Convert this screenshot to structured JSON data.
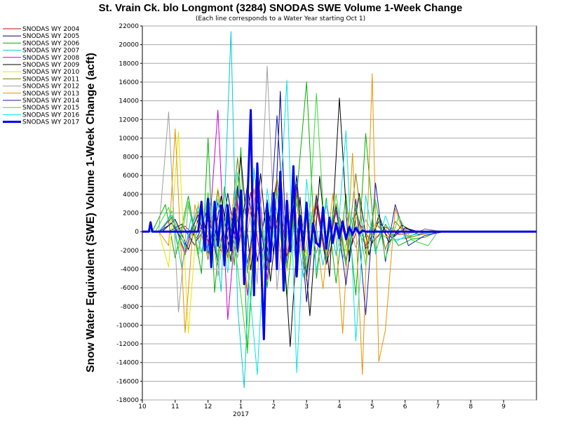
{
  "chart_data": {
    "type": "line",
    "title": "St. Vrain Ck. blo Longmont (3284) SNODAS SWE Volume 1-Week Change",
    "subtitle": "(Each line corresponds to a Water Year starting Oct 1)",
    "xlabel": "",
    "ylabel": "Snow Water Equivalent (SWE) Volume 1-Week Change (acft)",
    "x_unit": "month",
    "xlim": [
      10,
      22
    ],
    "ylim": [
      -18000,
      22000
    ],
    "y_ticks": [
      -18000,
      -16000,
      -14000,
      -12000,
      -10000,
      -8000,
      -6000,
      -4000,
      -2000,
      0,
      2000,
      4000,
      6000,
      8000,
      10000,
      12000,
      14000,
      16000,
      18000,
      20000,
      22000
    ],
    "x_ticks": [
      {
        "x": 10,
        "label": "10"
      },
      {
        "x": 11,
        "label": "11"
      },
      {
        "x": 12,
        "label": "12"
      },
      {
        "x": 13,
        "label": "1"
      },
      {
        "x": 14,
        "label": "2"
      },
      {
        "x": 15,
        "label": "3"
      },
      {
        "x": 16,
        "label": "4"
      },
      {
        "x": 17,
        "label": "5"
      },
      {
        "x": 18,
        "label": "6"
      },
      {
        "x": 19,
        "label": "7"
      },
      {
        "x": 20,
        "label": "8"
      },
      {
        "x": 21,
        "label": "9"
      }
    ],
    "year_label": {
      "x": 13,
      "text": "2017"
    },
    "grid": true,
    "legend_position": "left",
    "series": [
      {
        "name": "SNODAS WY 2004",
        "color": "#cc0000",
        "width": 1,
        "x": [
          10.0,
          10.9,
          11.3,
          11.7,
          12.0,
          12.4,
          12.8,
          13.1,
          13.3,
          13.6,
          13.9,
          14.1,
          14.4,
          14.7,
          15.0,
          15.3,
          15.6,
          16.0,
          16.3,
          16.6,
          17.0,
          17.4,
          17.8,
          18.5,
          19.0,
          21.0,
          22.0
        ],
        "y": [
          0,
          0,
          600,
          -800,
          1200,
          -2100,
          2500,
          -1500,
          4200,
          -3000,
          1800,
          5600,
          -2600,
          3100,
          -4200,
          2800,
          -3500,
          1600,
          -2200,
          900,
          -1200,
          500,
          -300,
          0,
          0,
          0,
          0
        ]
      },
      {
        "name": "SNODAS WY 2005",
        "color": "#000080",
        "width": 1,
        "x": [
          10.0,
          10.8,
          11.2,
          11.6,
          12.0,
          12.3,
          12.6,
          12.9,
          13.2,
          13.5,
          13.8,
          14.0,
          14.2,
          14.4,
          14.7,
          15.0,
          15.3,
          15.6,
          15.9,
          16.2,
          16.5,
          16.8,
          17.2,
          17.6,
          18.0,
          18.6,
          19.2,
          21.0,
          22.0
        ],
        "y": [
          0,
          0,
          800,
          -1500,
          2600,
          -3500,
          4100,
          -2200,
          5000,
          -3200,
          3400,
          -2400,
          15000,
          -4200,
          6000,
          -7500,
          3900,
          -2800,
          2200,
          -3300,
          2500,
          -1800,
          1100,
          -700,
          400,
          -200,
          0,
          0,
          0
        ]
      },
      {
        "name": "SNODAS WY 2006",
        "color": "#00b000",
        "width": 1,
        "x": [
          10.0,
          10.3,
          10.7,
          11.0,
          11.4,
          11.8,
          12.0,
          12.2,
          12.5,
          12.8,
          13.0,
          13.2,
          13.5,
          13.8,
          14.1,
          14.4,
          14.7,
          15.0,
          15.3,
          15.6,
          15.9,
          16.2,
          16.5,
          16.8,
          17.1,
          17.4,
          17.8,
          18.2,
          18.6,
          19.0,
          21.0,
          22.0
        ],
        "y": [
          0,
          0,
          2900,
          -2800,
          3800,
          -4500,
          10000,
          -6500,
          4800,
          -3600,
          9000,
          -13000,
          5900,
          -6000,
          4500,
          -7000,
          3900,
          16000,
          -5000,
          3600,
          -5500,
          4000,
          -6800,
          10500,
          -2100,
          800,
          -1500,
          -800,
          -600,
          0,
          0,
          0
        ]
      },
      {
        "name": "SNODAS WY 2007",
        "color": "#00cccc",
        "width": 1,
        "x": [
          10.0,
          10.6,
          10.9,
          11.2,
          11.5,
          11.8,
          12.1,
          12.4,
          12.7,
          12.9,
          13.1,
          13.4,
          13.7,
          14.0,
          14.3,
          14.6,
          14.9,
          15.2,
          15.5,
          15.8,
          16.1,
          16.4,
          16.7,
          17.0,
          17.3,
          17.6,
          18.0,
          18.5,
          19.0,
          21.0,
          22.0
        ],
        "y": [
          0,
          0,
          2200,
          -3900,
          1800,
          -2200,
          3500,
          -6400,
          21400,
          -8000,
          -16700,
          6800,
          -3900,
          4200,
          -2600,
          3300,
          -4900,
          2400,
          -3600,
          1900,
          -2900,
          1500,
          -900,
          600,
          -400,
          -900,
          -700,
          -300,
          0,
          0,
          0
        ]
      },
      {
        "name": "SNODAS WY 2008",
        "color": "#cc00cc",
        "width": 1,
        "x": [
          10.0,
          10.5,
          10.9,
          11.3,
          11.7,
          12.0,
          12.3,
          12.6,
          12.9,
          13.2,
          13.5,
          13.8,
          14.1,
          14.4,
          14.7,
          15.0,
          15.3,
          15.6,
          15.9,
          16.2,
          16.5,
          16.8,
          17.1,
          17.5,
          18.0,
          18.6,
          19.2,
          21.0,
          22.0
        ],
        "y": [
          0,
          0,
          1500,
          -2200,
          2800,
          -1800,
          13000,
          -9400,
          3300,
          -6800,
          7300,
          -5100,
          4400,
          -3600,
          4800,
          -5200,
          3200,
          -2900,
          2100,
          -3000,
          2400,
          -1500,
          900,
          -600,
          300,
          -200,
          0,
          0,
          0
        ]
      },
      {
        "name": "SNODAS WY 2009",
        "color": "#000000",
        "width": 1,
        "x": [
          10.0,
          10.6,
          11.0,
          11.4,
          11.8,
          12.1,
          12.4,
          12.7,
          13.0,
          13.3,
          13.6,
          13.9,
          14.2,
          14.5,
          14.8,
          15.1,
          15.4,
          15.7,
          16.0,
          16.3,
          16.6,
          16.9,
          17.2,
          17.5,
          17.9,
          18.4,
          19.0,
          21.0,
          22.0
        ],
        "y": [
          0,
          0,
          1300,
          -1900,
          2400,
          -2800,
          3800,
          -3200,
          8000,
          -4100,
          6200,
          -5300,
          4300,
          -12300,
          3700,
          -9000,
          5900,
          -4800,
          14300,
          -3200,
          4100,
          -2500,
          1800,
          -1200,
          700,
          -300,
          0,
          0,
          0
        ]
      },
      {
        "name": "SNODAS WY 2010",
        "color": "#e6e600",
        "width": 1,
        "x": [
          10.0,
          10.5,
          10.8,
          11.1,
          11.4,
          11.7,
          12.0,
          12.3,
          12.6,
          12.9,
          13.2,
          13.5,
          13.8,
          14.1,
          14.4,
          14.7,
          15.0,
          15.3,
          15.6,
          15.9,
          16.2,
          16.5,
          16.8,
          17.1,
          17.4,
          17.8,
          18.3,
          19.0,
          21.0,
          22.0
        ],
        "y": [
          0,
          0,
          -3800,
          10700,
          -10900,
          3200,
          -2500,
          4700,
          -3300,
          5800,
          -6000,
          3900,
          -3000,
          4600,
          -4200,
          3400,
          -2600,
          4100,
          -3100,
          2500,
          -2100,
          1700,
          -1200,
          900,
          -600,
          300,
          -100,
          0,
          0,
          0
        ]
      },
      {
        "name": "SNODAS WY 2011",
        "color": "#7f7f00",
        "width": 1,
        "x": [
          10.0,
          10.5,
          10.9,
          11.3,
          11.7,
          12.0,
          12.3,
          12.6,
          12.9,
          13.2,
          13.5,
          13.8,
          14.1,
          14.4,
          14.7,
          15.0,
          15.3,
          15.6,
          15.9,
          16.2,
          16.5,
          16.8,
          17.1,
          17.4,
          17.7,
          18.1,
          18.6,
          19.1,
          21.0,
          22.0
        ],
        "y": [
          0,
          0,
          1600,
          -2500,
          2200,
          -3000,
          4400,
          -2800,
          7900,
          -4400,
          3800,
          -3100,
          5800,
          -3900,
          4300,
          -5100,
          3600,
          -2800,
          3000,
          -3700,
          6200,
          -2400,
          3200,
          -1900,
          1100,
          -600,
          300,
          0,
          0,
          0
        ]
      },
      {
        "name": "SNODAS WY 2012",
        "color": "#a0a0a0",
        "width": 1,
        "x": [
          10.0,
          10.5,
          10.8,
          11.1,
          11.4,
          11.7,
          12.0,
          12.3,
          12.6,
          12.9,
          13.2,
          13.5,
          13.8,
          14.1,
          14.4,
          14.7,
          15.0,
          15.3,
          15.6,
          15.9,
          16.2,
          16.5,
          16.8,
          17.1,
          17.5,
          17.9,
          18.4,
          19.0,
          21.0,
          22.0
        ],
        "y": [
          0,
          0,
          12800,
          -8600,
          2800,
          -2000,
          3700,
          -4800,
          3000,
          -2800,
          4300,
          -5600,
          17700,
          -6200,
          4200,
          -3900,
          3100,
          -2300,
          2800,
          -2500,
          1900,
          -1700,
          1300,
          -800,
          500,
          -300,
          0,
          0,
          0,
          0
        ]
      },
      {
        "name": "SNODAS WY 2013",
        "color": "#e69500",
        "width": 1,
        "x": [
          10.0,
          10.5,
          10.8,
          11.0,
          11.3,
          11.6,
          11.9,
          12.2,
          12.5,
          12.8,
          13.1,
          13.4,
          13.7,
          14.0,
          14.3,
          14.6,
          14.9,
          15.2,
          15.5,
          15.8,
          16.1,
          16.4,
          16.7,
          17.0,
          17.2,
          17.4,
          17.7,
          18.0,
          18.5,
          19.0,
          21.0,
          22.0
        ],
        "y": [
          0,
          0,
          -1500,
          11000,
          -10800,
          2900,
          -1800,
          2600,
          -3400,
          3700,
          -2600,
          4600,
          -3900,
          3200,
          -4700,
          3800,
          -3200,
          2700,
          -6100,
          4100,
          -10900,
          8400,
          -15300,
          16900,
          -13900,
          -10500,
          2500,
          -800,
          -300,
          0,
          0,
          0
        ]
      },
      {
        "name": "SNODAS WY 2014",
        "color": "#1a1ab3",
        "width": 1,
        "x": [
          10.0,
          10.5,
          10.9,
          11.3,
          11.7,
          12.0,
          12.3,
          12.6,
          12.9,
          13.2,
          13.5,
          13.8,
          14.1,
          14.4,
          14.7,
          15.0,
          15.3,
          15.6,
          15.9,
          16.2,
          16.5,
          16.8,
          17.1,
          17.4,
          17.7,
          18.1,
          18.6,
          19.2,
          21.0,
          22.0
        ],
        "y": [
          0,
          0,
          900,
          -1400,
          1800,
          -2300,
          3100,
          -2200,
          4900,
          -3400,
          2800,
          -4100,
          12400,
          -3700,
          5100,
          -4600,
          3900,
          -3300,
          2700,
          -5700,
          3500,
          -8900,
          5200,
          -3200,
          2900,
          -1500,
          -400,
          0,
          0,
          0
        ]
      },
      {
        "name": "SNODAS WY 2015",
        "color": "#33dd33",
        "width": 1,
        "x": [
          10.0,
          10.4,
          10.8,
          11.1,
          11.4,
          11.7,
          12.0,
          12.3,
          12.6,
          12.9,
          13.2,
          13.5,
          13.8,
          14.1,
          14.4,
          14.7,
          15.0,
          15.3,
          15.6,
          15.9,
          16.2,
          16.5,
          16.8,
          17.1,
          17.4,
          17.8,
          18.2,
          18.7,
          19.0,
          21.0,
          22.0
        ],
        "y": [
          0,
          0,
          2600,
          -1900,
          3200,
          -2700,
          4200,
          -3300,
          2900,
          -3800,
          -12900,
          3100,
          -2700,
          4400,
          -3700,
          3200,
          -4100,
          14800,
          -3100,
          4000,
          -3400,
          2900,
          -3600,
          3400,
          -2900,
          1600,
          -900,
          -1500,
          0,
          0,
          0
        ]
      },
      {
        "name": "SNODAS WY 2016",
        "color": "#00e6e6",
        "width": 1,
        "x": [
          10.0,
          10.5,
          10.9,
          11.3,
          11.7,
          12.0,
          12.3,
          12.6,
          12.9,
          13.2,
          13.5,
          13.8,
          14.1,
          14.4,
          14.7,
          15.0,
          15.3,
          15.6,
          15.9,
          16.2,
          16.5,
          16.8,
          17.1,
          17.4,
          17.7,
          18.0,
          18.5,
          19.0,
          21.0,
          22.0
        ],
        "y": [
          0,
          0,
          1800,
          -1600,
          2700,
          -2100,
          3500,
          -4400,
          6400,
          -3700,
          -15300,
          4600,
          -2900,
          16200,
          -15100,
          5600,
          -4200,
          3300,
          -2600,
          10800,
          -11700,
          3900,
          -2400,
          1700,
          -1100,
          -500,
          -200,
          0,
          0,
          0
        ]
      },
      {
        "name": "SNODAS WY 2017",
        "color": "#0000ee",
        "width": 3,
        "x": [
          10.0,
          10.2,
          10.25,
          10.3,
          10.4,
          10.5,
          10.6,
          10.8,
          11.0,
          11.3,
          11.5,
          11.7,
          11.8,
          11.9,
          12.0,
          12.1,
          12.2,
          12.3,
          12.4,
          12.5,
          12.6,
          12.7,
          12.8,
          12.9,
          13.0,
          13.1,
          13.2,
          13.3,
          13.4,
          13.5,
          13.6,
          13.7,
          13.8,
          13.9,
          14.0,
          14.1,
          14.2,
          14.3,
          14.4,
          14.5,
          14.6,
          14.7,
          14.8,
          14.9,
          15.0,
          15.1,
          15.2,
          15.3,
          15.4,
          15.5,
          15.6,
          15.7,
          15.8,
          15.9,
          16.0,
          16.1,
          16.2,
          16.3,
          16.4,
          16.5,
          16.6,
          16.7,
          16.8,
          17.0,
          17.5,
          18.0,
          19.0,
          20.0,
          21.0,
          21.5,
          21.8,
          22.0
        ],
        "y": [
          0,
          0,
          1000,
          0,
          0,
          0,
          0,
          0,
          0,
          0,
          0,
          0,
          3200,
          -2000,
          3500,
          -3800,
          3200,
          -1500,
          2800,
          -3600,
          2800,
          -2000,
          2500,
          -1800,
          4400,
          -5600,
          3300,
          13000,
          -6800,
          7300,
          -1500,
          -11500,
          3000,
          -3200,
          4100,
          -4000,
          6400,
          -6300,
          3300,
          -2100,
          7000,
          -4800,
          1700,
          -1900,
          3100,
          -2400,
          900,
          -1200,
          -1600,
          2600,
          -1800,
          1500,
          -1200,
          900,
          -700,
          1100,
          -800,
          500,
          -300,
          400,
          -200,
          100,
          0,
          0,
          0,
          0,
          0,
          0,
          0,
          0,
          0,
          0
        ]
      }
    ]
  }
}
